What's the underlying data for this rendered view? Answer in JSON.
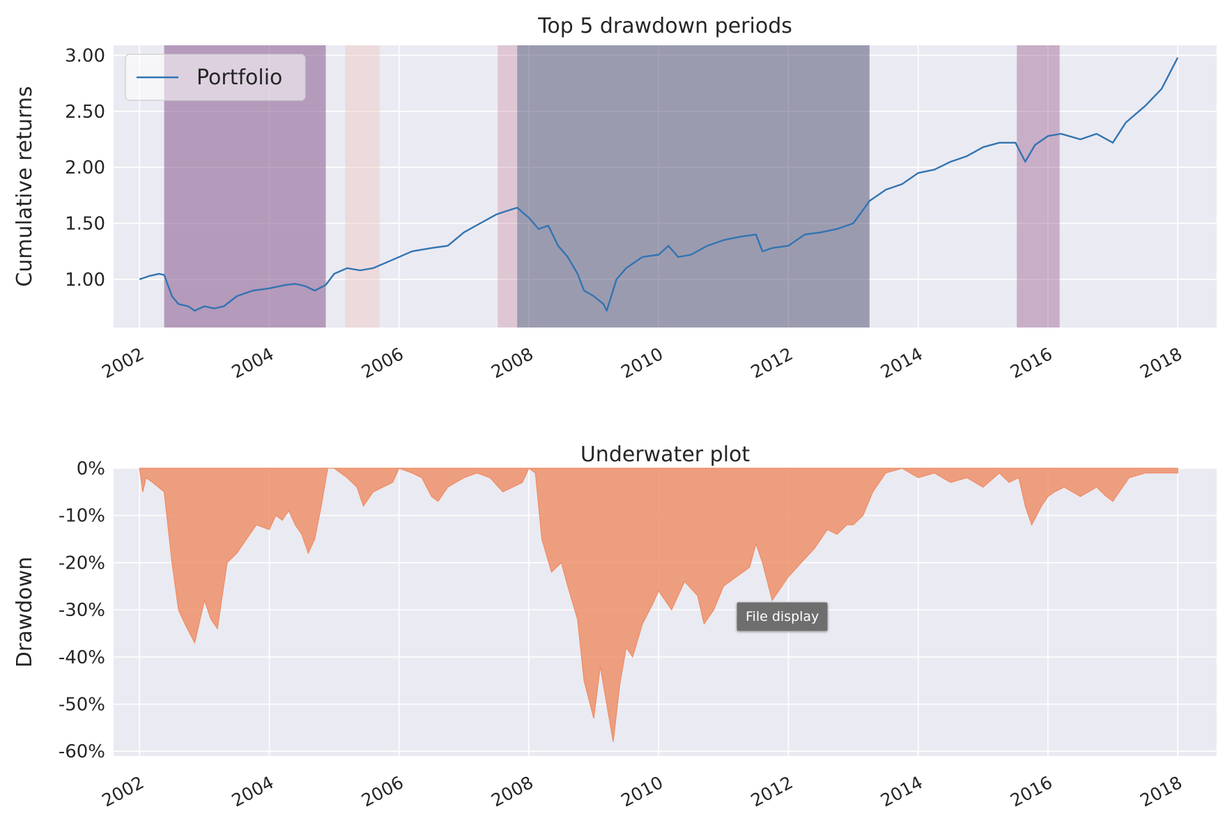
{
  "colors": {
    "plot_background": "#eaeaf2",
    "grid": "#ffffff",
    "line": "#3274b1",
    "area": "#ee8b62",
    "text": "#262626"
  },
  "tooltip": {
    "text": "File display"
  },
  "chart_data": [
    {
      "type": "line",
      "title": "Top 5 drawdown periods",
      "ylabel": "Cumulative returns",
      "xlabel": "",
      "xlim": [
        2001.6,
        2018.6
      ],
      "ylim": [
        0.57,
        3.09
      ],
      "x_ticks": [
        2002,
        2004,
        2006,
        2008,
        2010,
        2012,
        2014,
        2016,
        2018
      ],
      "y_ticks": [
        1.0,
        1.5,
        2.0,
        2.5,
        3.0
      ],
      "y_tick_labels": [
        "1.00",
        "1.50",
        "2.00",
        "2.50",
        "3.00"
      ],
      "grid": true,
      "legend": {
        "position": "top-left",
        "entries": [
          "Portfolio"
        ]
      },
      "shaded_periods": [
        {
          "start": 2002.38,
          "end": 2004.87,
          "color": "#7e4a83",
          "opacity": 0.5
        },
        {
          "start": 2005.17,
          "end": 2005.7,
          "color": "#f0c7c1",
          "opacity": 0.45
        },
        {
          "start": 2007.52,
          "end": 2007.82,
          "color": "#c9879a",
          "opacity": 0.35
        },
        {
          "start": 2007.82,
          "end": 2013.25,
          "color": "#4b4b6e",
          "opacity": 0.5
        },
        {
          "start": 2015.52,
          "end": 2016.18,
          "color": "#9a5a8e",
          "opacity": 0.42
        }
      ],
      "series": [
        {
          "name": "Portfolio",
          "x": [
            2002.0,
            2002.15,
            2002.3,
            2002.38,
            2002.5,
            2002.6,
            2002.75,
            2002.85,
            2003.0,
            2003.15,
            2003.3,
            2003.5,
            2003.75,
            2004.0,
            2004.25,
            2004.4,
            2004.55,
            2004.7,
            2004.87,
            2005.0,
            2005.2,
            2005.4,
            2005.6,
            2005.8,
            2006.0,
            2006.2,
            2006.5,
            2006.75,
            2007.0,
            2007.25,
            2007.5,
            2007.6,
            2007.82,
            2007.9,
            2008.0,
            2008.15,
            2008.3,
            2008.45,
            2008.6,
            2008.75,
            2008.85,
            2009.0,
            2009.15,
            2009.2,
            2009.35,
            2009.5,
            2009.75,
            2010.0,
            2010.15,
            2010.3,
            2010.5,
            2010.75,
            2011.0,
            2011.25,
            2011.5,
            2011.6,
            2011.75,
            2012.0,
            2012.25,
            2012.5,
            2012.75,
            2013.0,
            2013.25,
            2013.5,
            2013.75,
            2014.0,
            2014.25,
            2014.5,
            2014.75,
            2015.0,
            2015.25,
            2015.5,
            2015.65,
            2015.8,
            2016.0,
            2016.2,
            2016.5,
            2016.75,
            2017.0,
            2017.2,
            2017.5,
            2017.75,
            2018.0
          ],
          "values": [
            1.0,
            1.03,
            1.05,
            1.04,
            0.85,
            0.78,
            0.76,
            0.72,
            0.76,
            0.74,
            0.76,
            0.85,
            0.9,
            0.92,
            0.95,
            0.96,
            0.94,
            0.9,
            0.95,
            1.05,
            1.1,
            1.08,
            1.1,
            1.15,
            1.2,
            1.25,
            1.28,
            1.3,
            1.42,
            1.5,
            1.58,
            1.6,
            1.64,
            1.6,
            1.55,
            1.45,
            1.48,
            1.3,
            1.2,
            1.05,
            0.9,
            0.85,
            0.78,
            0.72,
            1.0,
            1.1,
            1.2,
            1.22,
            1.3,
            1.2,
            1.22,
            1.3,
            1.35,
            1.38,
            1.4,
            1.25,
            1.28,
            1.3,
            1.4,
            1.42,
            1.45,
            1.5,
            1.7,
            1.8,
            1.85,
            1.95,
            1.98,
            2.05,
            2.1,
            2.18,
            2.22,
            2.22,
            2.05,
            2.2,
            2.28,
            2.3,
            2.25,
            2.3,
            2.22,
            2.4,
            2.55,
            2.7,
            2.98
          ]
        }
      ]
    },
    {
      "type": "area",
      "title": "Underwater plot",
      "ylabel": "Drawdown",
      "xlabel": "",
      "xlim": [
        2001.6,
        2018.6
      ],
      "ylim": [
        -61,
        0
      ],
      "x_ticks": [
        2002,
        2004,
        2006,
        2008,
        2010,
        2012,
        2014,
        2016,
        2018
      ],
      "y_ticks": [
        0,
        -10,
        -20,
        -30,
        -40,
        -50,
        -60
      ],
      "y_tick_labels": [
        "0%",
        "-10%",
        "-20%",
        "-30%",
        "-40%",
        "-50%",
        "-60%"
      ],
      "grid": true,
      "series": [
        {
          "name": "",
          "x": [
            2002.0,
            2002.05,
            2002.1,
            2002.2,
            2002.38,
            2002.5,
            2002.6,
            2002.7,
            2002.85,
            2003.0,
            2003.1,
            2003.2,
            2003.35,
            2003.5,
            2003.6,
            2003.8,
            2004.0,
            2004.1,
            2004.2,
            2004.3,
            2004.4,
            2004.5,
            2004.6,
            2004.7,
            2004.8,
            2004.9,
            2005.0,
            2005.2,
            2005.35,
            2005.45,
            2005.6,
            2005.75,
            2005.9,
            2006.0,
            2006.2,
            2006.35,
            2006.5,
            2006.6,
            2006.75,
            2007.0,
            2007.2,
            2007.4,
            2007.6,
            2007.75,
            2007.9,
            2008.0,
            2008.1,
            2008.2,
            2008.35,
            2008.5,
            2008.6,
            2008.75,
            2008.85,
            2009.0,
            2009.1,
            2009.2,
            2009.3,
            2009.4,
            2009.5,
            2009.6,
            2009.75,
            2009.9,
            2010.0,
            2010.2,
            2010.4,
            2010.6,
            2010.7,
            2010.85,
            2011.0,
            2011.2,
            2011.4,
            2011.5,
            2011.6,
            2011.75,
            2011.9,
            2012.0,
            2012.2,
            2012.4,
            2012.6,
            2012.75,
            2012.9,
            2013.0,
            2013.15,
            2013.3,
            2013.5,
            2013.75,
            2014.0,
            2014.25,
            2014.5,
            2014.75,
            2015.0,
            2015.25,
            2015.4,
            2015.55,
            2015.65,
            2015.75,
            2015.9,
            2016.0,
            2016.1,
            2016.25,
            2016.5,
            2016.75,
            2016.9,
            2017.0,
            2017.25,
            2017.5,
            2017.75,
            2018.0
          ],
          "values": [
            0,
            -5,
            -2,
            -3,
            -5,
            -20,
            -30,
            -33,
            -37,
            -28,
            -32,
            -34,
            -20,
            -18,
            -16,
            -12,
            -13,
            -10,
            -11,
            -9,
            -12,
            -14,
            -18,
            -15,
            -8,
            0,
            0,
            -2,
            -4,
            -8,
            -5,
            -4,
            -3,
            0,
            -1,
            -2,
            -6,
            -7,
            -4,
            -2,
            -1,
            -2,
            -5,
            -4,
            -3,
            0,
            -1,
            -15,
            -22,
            -20,
            -25,
            -32,
            -45,
            -53,
            -42,
            -50,
            -58,
            -46,
            -38,
            -40,
            -33,
            -29,
            -26,
            -30,
            -24,
            -27,
            -33,
            -30,
            -25,
            -23,
            -21,
            -16,
            -20,
            -28,
            -25,
            -23,
            -20,
            -17,
            -13,
            -14,
            -12,
            -12,
            -10,
            -5,
            -1,
            0,
            -2,
            -1,
            -3,
            -2,
            -4,
            -1,
            -3,
            -2,
            -8,
            -12,
            -8,
            -6,
            -5,
            -4,
            -6,
            -4,
            -6,
            -7,
            -2,
            -1,
            -1,
            -1
          ]
        }
      ]
    }
  ]
}
